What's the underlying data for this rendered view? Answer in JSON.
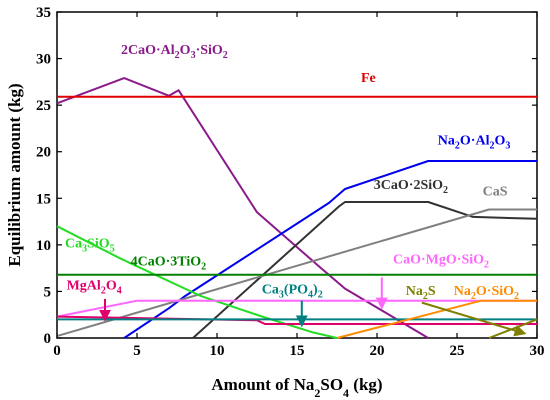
{
  "chart_data": {
    "type": "line",
    "xlabel": "Amount of Na₂SO₄ (kg)",
    "ylabel": "Equilibrium amount (kg)",
    "xlim": [
      0,
      30
    ],
    "ylim": [
      0,
      35
    ],
    "xticks": [
      0,
      5,
      10,
      15,
      20,
      25,
      30
    ],
    "yticks": [
      0,
      5,
      10,
      15,
      20,
      25,
      30,
      35
    ],
    "grid": false,
    "series": [
      {
        "name": "2CaO·Al₂O₃·SiO₂",
        "label": [
          [
            "2CaO·Al",
            "n"
          ],
          [
            "2",
            "s"
          ],
          [
            "O",
            "n"
          ],
          [
            "3",
            "s"
          ],
          [
            "·SiO",
            "n"
          ],
          [
            "2",
            "s"
          ]
        ],
        "color": "#8B1A8B",
        "label_at": [
          4,
          30.5
        ],
        "data": [
          [
            0,
            25.2
          ],
          [
            4.2,
            27.9
          ],
          [
            7.0,
            26.0
          ],
          [
            7.6,
            26.6
          ],
          [
            12.5,
            13.5
          ],
          [
            16.5,
            7.5
          ],
          [
            18.0,
            5.3
          ],
          [
            23.2,
            0
          ]
        ]
      },
      {
        "name": "Fe",
        "label": [
          [
            "Fe",
            "n"
          ]
        ],
        "color": "#E00000",
        "label_at": [
          19,
          27.5
        ],
        "data": [
          [
            0,
            25.9
          ],
          [
            30,
            25.9
          ]
        ]
      },
      {
        "name": "Na₂O·Al₂O₃",
        "label": [
          [
            "Na",
            "n"
          ],
          [
            "2",
            "s"
          ],
          [
            "O·Al",
            "n"
          ],
          [
            "2",
            "s"
          ],
          [
            "O",
            "n"
          ],
          [
            "3",
            "s"
          ]
        ],
        "color": "#0000EE",
        "label_at": [
          23.8,
          20.8
        ],
        "data": [
          [
            4.2,
            0
          ],
          [
            7.0,
            3.2
          ],
          [
            8.0,
            4.5
          ],
          [
            17.0,
            14.5
          ],
          [
            18.0,
            16.0
          ],
          [
            23.2,
            19.0
          ],
          [
            30,
            19.0
          ]
        ]
      },
      {
        "name": "3CaO·2SiO₂",
        "label": [
          [
            "3CaO·2SiO",
            "n"
          ],
          [
            "2",
            "s"
          ]
        ],
        "color": "#333333",
        "label_at": [
          19.8,
          16.0
        ],
        "data": [
          [
            8.5,
            0
          ],
          [
            17.6,
            14.1
          ],
          [
            18.0,
            14.6
          ],
          [
            23.2,
            14.6
          ],
          [
            26.0,
            13.0
          ],
          [
            30,
            12.8
          ]
        ]
      },
      {
        "name": "CaS",
        "label": [
          [
            "CaS",
            "n"
          ]
        ],
        "color": "#808080",
        "label_at": [
          26.6,
          15.3
        ],
        "data": [
          [
            0,
            0.2
          ],
          [
            27.0,
            13.8
          ],
          [
            30,
            13.8
          ]
        ]
      },
      {
        "name": "Ca₃SiO₅",
        "label": [
          [
            "Ca",
            "n"
          ],
          [
            "3",
            "s"
          ],
          [
            "SiO",
            "n"
          ],
          [
            "5",
            "s"
          ]
        ],
        "color": "#22DD22",
        "label_at": [
          0.5,
          9.7
        ],
        "data": [
          [
            0,
            12.0
          ],
          [
            4.0,
            8.5
          ],
          [
            9.0,
            4.5
          ],
          [
            13.0,
            2.2
          ],
          [
            16.0,
            0.6
          ],
          [
            17.5,
            0
          ]
        ]
      },
      {
        "name": "4CaO·3TiO₂",
        "label": [
          [
            "4CaO·3TiO",
            "n"
          ],
          [
            "2",
            "s"
          ]
        ],
        "color": "#008000",
        "label_at": [
          4.6,
          7.8
        ],
        "data": [
          [
            0,
            6.8
          ],
          [
            30,
            6.8
          ]
        ]
      },
      {
        "name": "CaO·MgO·SiO₂",
        "label": [
          [
            "CaO·MgO·SiO",
            "n"
          ],
          [
            "2",
            "s"
          ]
        ],
        "color": "#FF66FF",
        "label_at": [
          21.0,
          8.0
        ],
        "data": [
          [
            0,
            2.3
          ],
          [
            5,
            4.0
          ],
          [
            30,
            4.0
          ]
        ]
      },
      {
        "name": "MgAl₂O₄",
        "label": [
          [
            "MgAl",
            "n"
          ],
          [
            "2",
            "s"
          ],
          [
            "O",
            "n"
          ],
          [
            "4",
            "s"
          ]
        ],
        "color": "#E0006C",
        "label_at": [
          0.6,
          5.2
        ],
        "data": [
          [
            0,
            2.3
          ],
          [
            12.5,
            1.9
          ],
          [
            13.0,
            1.5
          ],
          [
            30,
            1.5
          ]
        ]
      },
      {
        "name": "Ca₃(PO₄)₂",
        "label": [
          [
            "Ca",
            "n"
          ],
          [
            "3",
            "s"
          ],
          [
            "(PO",
            "n"
          ],
          [
            "4",
            "s"
          ],
          [
            ")",
            "n"
          ],
          [
            "2",
            "s"
          ]
        ],
        "color": "#008080",
        "label_at": [
          12.8,
          4.8
        ],
        "data": [
          [
            0,
            2.0
          ],
          [
            30,
            2.0
          ]
        ]
      },
      {
        "name": "Na₂S",
        "label": [
          [
            "Na",
            "n"
          ],
          [
            "2",
            "s"
          ],
          [
            "S",
            "n"
          ]
        ],
        "color": "#808000",
        "label_at": [
          21.8,
          4.6
        ],
        "data": [
          [
            27.0,
            0
          ],
          [
            30,
            2.0
          ]
        ]
      },
      {
        "name": "Na₂O·SiO₂",
        "label": [
          [
            "Na",
            "n"
          ],
          [
            "2",
            "s"
          ],
          [
            "O·SiO",
            "n"
          ],
          [
            "2",
            "s"
          ]
        ],
        "color": "#FF8C00",
        "label_at": [
          24.8,
          4.6
        ],
        "data": [
          [
            17.5,
            0
          ],
          [
            26.5,
            4.0
          ],
          [
            30,
            4.0
          ]
        ]
      }
    ],
    "annotations": [
      {
        "text": "Na₂S marker",
        "color": "#808000",
        "from": [
          22.8,
          3.8
        ],
        "to": [
          29.2,
          0.5
        ]
      },
      {
        "text": "MgAl₂O₄ marker",
        "color": "#E0006C",
        "from": [
          3.0,
          4.2
        ],
        "to": [
          3.0,
          2.0
        ]
      },
      {
        "text": "Ca₃(PO₄)₂ marker",
        "color": "#008080",
        "from": [
          15.3,
          4.0
        ],
        "to": [
          15.3,
          1.4
        ]
      },
      {
        "text": "CaO·MgO·SiO₂ marker",
        "color": "#FF66FF",
        "from": [
          20.3,
          6.5
        ],
        "to": [
          20.3,
          3.3
        ]
      }
    ]
  }
}
